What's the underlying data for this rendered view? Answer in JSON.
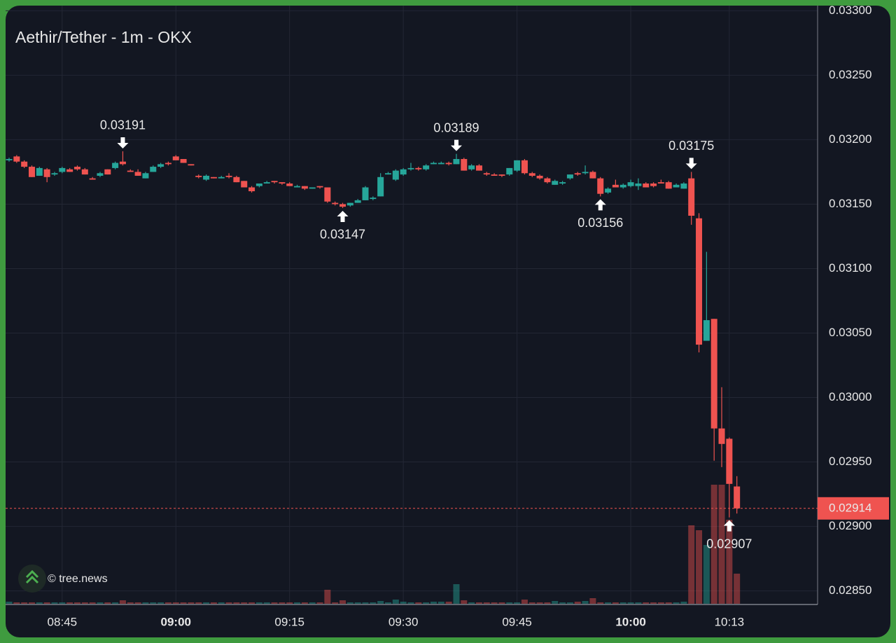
{
  "chart_data": {
    "type": "candlestick",
    "title": "Aethir/Tether - 1m - OKX",
    "watermark": "© tree.news",
    "x": [
      "08:38",
      "08:39",
      "08:40",
      "08:41",
      "08:42",
      "08:43",
      "08:44",
      "08:45",
      "08:46",
      "08:47",
      "08:48",
      "08:49",
      "08:50",
      "08:51",
      "08:52",
      "08:53",
      "08:54",
      "08:55",
      "08:56",
      "08:57",
      "08:58",
      "08:59",
      "09:00",
      "09:01",
      "09:02",
      "09:03",
      "09:04",
      "09:05",
      "09:06",
      "09:07",
      "09:08",
      "09:09",
      "09:10",
      "09:11",
      "09:12",
      "09:13",
      "09:14",
      "09:15",
      "09:16",
      "09:17",
      "09:18",
      "09:19",
      "09:20",
      "09:21",
      "09:22",
      "09:23",
      "09:24",
      "09:25",
      "09:26",
      "09:27",
      "09:28",
      "09:29",
      "09:30",
      "09:31",
      "09:32",
      "09:33",
      "09:34",
      "09:35",
      "09:36",
      "09:37",
      "09:38",
      "09:39",
      "09:40",
      "09:41",
      "09:42",
      "09:43",
      "09:44",
      "09:45",
      "09:46",
      "09:47",
      "09:48",
      "09:49",
      "09:50",
      "09:51",
      "09:52",
      "09:53",
      "09:54",
      "09:55",
      "09:56",
      "09:57",
      "09:58",
      "09:59",
      "10:00",
      "10:01",
      "10:02",
      "10:03",
      "10:04",
      "10:05",
      "10:06",
      "10:07",
      "10:08",
      "10:09",
      "10:10",
      "10:11",
      "10:12",
      "10:13",
      "10:14"
    ],
    "open": [
      0.03184,
      0.03187,
      0.03183,
      0.03179,
      0.03172,
      0.03177,
      0.03173,
      0.03175,
      0.03177,
      0.03179,
      0.03177,
      0.0317,
      0.03172,
      0.03177,
      0.03178,
      0.03183,
      0.03176,
      0.03175,
      0.0317,
      0.03175,
      0.03179,
      0.03182,
      0.03187,
      0.03185,
      0.03181,
      0.03172,
      0.03169,
      0.03171,
      0.0317,
      0.03172,
      0.03171,
      0.03168,
      0.03163,
      0.03164,
      0.03166,
      0.03168,
      0.03167,
      0.03166,
      0.03163,
      0.03164,
      0.03162,
      0.03164,
      0.03163,
      0.03151,
      0.0315,
      0.03149,
      0.03151,
      0.03153,
      0.03154,
      0.03156,
      0.03173,
      0.03169,
      0.03173,
      0.03177,
      0.03178,
      0.03177,
      0.03181,
      0.03181,
      0.03182,
      0.03181,
      0.03185,
      0.03177,
      0.0318,
      0.03174,
      0.03173,
      0.03173,
      0.03173,
      0.03176,
      0.03184,
      0.03174,
      0.03172,
      0.0317,
      0.03165,
      0.03166,
      0.0317,
      0.03174,
      0.03174,
      0.03175,
      0.0317,
      0.03159,
      0.03165,
      0.03163,
      0.03164,
      0.03164,
      0.03166,
      0.03166,
      0.03167,
      0.03167,
      0.03163,
      0.03162,
      0.0317,
      0.03139,
      0.03044,
      0.03061,
      0.02976,
      0.02968,
      0.02931
    ],
    "high": [
      0.03186,
      0.03188,
      0.03184,
      0.0318,
      0.03179,
      0.03178,
      0.03175,
      0.03179,
      0.03178,
      0.0318,
      0.03178,
      0.03171,
      0.03175,
      0.03177,
      0.03183,
      0.03191,
      0.03177,
      0.03177,
      0.03175,
      0.0318,
      0.03182,
      0.03183,
      0.03188,
      0.03185,
      0.03181,
      0.03173,
      0.03173,
      0.03171,
      0.03172,
      0.03174,
      0.03172,
      0.03168,
      0.03164,
      0.03166,
      0.03168,
      0.03168,
      0.03167,
      0.03167,
      0.03165,
      0.03164,
      0.03163,
      0.03164,
      0.03163,
      0.03152,
      0.03151,
      0.03151,
      0.03154,
      0.03164,
      0.03156,
      0.03174,
      0.03175,
      0.03177,
      0.03178,
      0.03182,
      0.03179,
      0.03181,
      0.03183,
      0.03183,
      0.03183,
      0.03189,
      0.03186,
      0.03181,
      0.03181,
      0.03175,
      0.03174,
      0.03173,
      0.03178,
      0.03184,
      0.03185,
      0.03175,
      0.03173,
      0.03171,
      0.03169,
      0.03168,
      0.03173,
      0.03175,
      0.0318,
      0.03176,
      0.03171,
      0.03163,
      0.03169,
      0.03166,
      0.03169,
      0.0317,
      0.03167,
      0.03167,
      0.03169,
      0.03168,
      0.03166,
      0.03167,
      0.03175,
      0.03143,
      0.03113,
      0.03061,
      0.03008,
      0.02969,
      0.02939
    ],
    "low": [
      0.03183,
      0.03182,
      0.03178,
      0.03171,
      0.03172,
      0.03167,
      0.03172,
      0.03174,
      0.03175,
      0.03176,
      0.03173,
      0.03169,
      0.03171,
      0.03173,
      0.03177,
      0.0318,
      0.03175,
      0.03172,
      0.0317,
      0.03175,
      0.03178,
      0.0318,
      0.03184,
      0.03182,
      0.0318,
      0.0317,
      0.03168,
      0.0317,
      0.0317,
      0.0317,
      0.03167,
      0.03163,
      0.03159,
      0.03163,
      0.03166,
      0.03166,
      0.03165,
      0.03164,
      0.03163,
      0.03161,
      0.03162,
      0.03162,
      0.03151,
      0.03149,
      0.03147,
      0.03148,
      0.03151,
      0.03153,
      0.03153,
      0.03156,
      0.03173,
      0.03168,
      0.03172,
      0.03176,
      0.03176,
      0.03176,
      0.03181,
      0.03181,
      0.0318,
      0.03181,
      0.03176,
      0.03176,
      0.03176,
      0.03172,
      0.03172,
      0.03171,
      0.03172,
      0.03175,
      0.03173,
      0.03171,
      0.03169,
      0.03166,
      0.03165,
      0.03165,
      0.03169,
      0.03172,
      0.03173,
      0.0317,
      0.03156,
      0.03158,
      0.03163,
      0.03162,
      0.03163,
      0.03161,
      0.03163,
      0.03163,
      0.03166,
      0.03162,
      0.03163,
      0.03162,
      0.03134,
      0.03035,
      0.03044,
      0.02951,
      0.02946,
      0.02907,
      0.0291
    ],
    "close": [
      0.03185,
      0.03183,
      0.03179,
      0.03171,
      0.03178,
      0.03171,
      0.03174,
      0.03178,
      0.03175,
      0.03177,
      0.03173,
      0.03169,
      0.03174,
      0.03173,
      0.03182,
      0.03181,
      0.03175,
      0.03172,
      0.03174,
      0.03179,
      0.03181,
      0.03181,
      0.03184,
      0.03182,
      0.0318,
      0.03171,
      0.03172,
      0.0317,
      0.03171,
      0.03171,
      0.03167,
      0.03163,
      0.0316,
      0.03166,
      0.03167,
      0.03167,
      0.03166,
      0.03164,
      0.03164,
      0.03162,
      0.03163,
      0.03163,
      0.03152,
      0.0315,
      0.03148,
      0.03151,
      0.03153,
      0.03163,
      0.03155,
      0.03171,
      0.03174,
      0.03176,
      0.03177,
      0.03178,
      0.03177,
      0.0318,
      0.03182,
      0.03182,
      0.03181,
      0.03185,
      0.03176,
      0.0318,
      0.03176,
      0.03173,
      0.03172,
      0.03172,
      0.03178,
      0.03184,
      0.03174,
      0.03172,
      0.0317,
      0.03167,
      0.03168,
      0.03167,
      0.03173,
      0.03173,
      0.03175,
      0.0317,
      0.03158,
      0.03162,
      0.03163,
      0.03165,
      0.03167,
      0.03166,
      0.03163,
      0.03164,
      0.03166,
      0.03162,
      0.03165,
      0.03166,
      0.03141,
      0.03041,
      0.0306,
      0.02976,
      0.02964,
      0.02933,
      0.02914
    ],
    "volume": [
      3,
      2,
      2,
      2,
      2,
      2,
      2,
      2,
      2,
      2,
      2,
      2,
      2,
      2,
      2,
      5,
      2,
      2,
      2,
      2,
      2,
      2,
      2,
      2,
      2,
      2,
      2,
      2,
      2,
      2,
      2,
      2,
      2,
      2,
      2,
      2,
      2,
      2,
      2,
      2,
      2,
      2,
      20,
      2,
      5,
      2,
      2,
      2,
      2,
      4,
      2,
      6,
      3,
      2,
      2,
      2,
      3,
      3,
      3,
      28,
      5,
      2,
      2,
      2,
      2,
      2,
      2,
      2,
      6,
      2,
      2,
      2,
      4,
      2,
      2,
      3,
      4,
      8,
      2,
      2,
      2,
      2,
      2,
      2,
      2,
      2,
      2,
      2,
      2,
      3,
      112,
      105,
      84,
      170,
      170,
      120,
      43
    ],
    "up_color": "#26a69a",
    "down_color": "#ef5350",
    "ylim": [
      0.0284,
      0.03304
    ],
    "yticks": [
      {
        "value": 0.0285,
        "label": "0.02850"
      },
      {
        "value": 0.029,
        "label": "0.02900"
      },
      {
        "value": 0.0295,
        "label": "0.02950"
      },
      {
        "value": 0.03,
        "label": "0.03000"
      },
      {
        "value": 0.0305,
        "label": "0.03050"
      },
      {
        "value": 0.031,
        "label": "0.03100"
      },
      {
        "value": 0.0315,
        "label": "0.03150"
      },
      {
        "value": 0.032,
        "label": "0.03200"
      },
      {
        "value": 0.0325,
        "label": "0.03250"
      },
      {
        "value": 0.033,
        "label": "0.03300"
      }
    ],
    "xticks": [
      "08:45",
      "09:00",
      "09:15",
      "09:30",
      "09:45",
      "10:00",
      "10:13"
    ],
    "annotations": [
      {
        "x": "08:53",
        "value": 0.03191,
        "side": "above"
      },
      {
        "x": "09:22",
        "value": 0.03147,
        "side": "below"
      },
      {
        "x": "09:37",
        "value": 0.03189,
        "side": "above"
      },
      {
        "x": "09:56",
        "value": 0.03156,
        "side": "below"
      },
      {
        "x": "10:08",
        "value": 0.03175,
        "side": "above"
      },
      {
        "x": "10:13",
        "value": 0.02907,
        "side": "below"
      }
    ],
    "last_price": 0.02914,
    "grid": true
  }
}
